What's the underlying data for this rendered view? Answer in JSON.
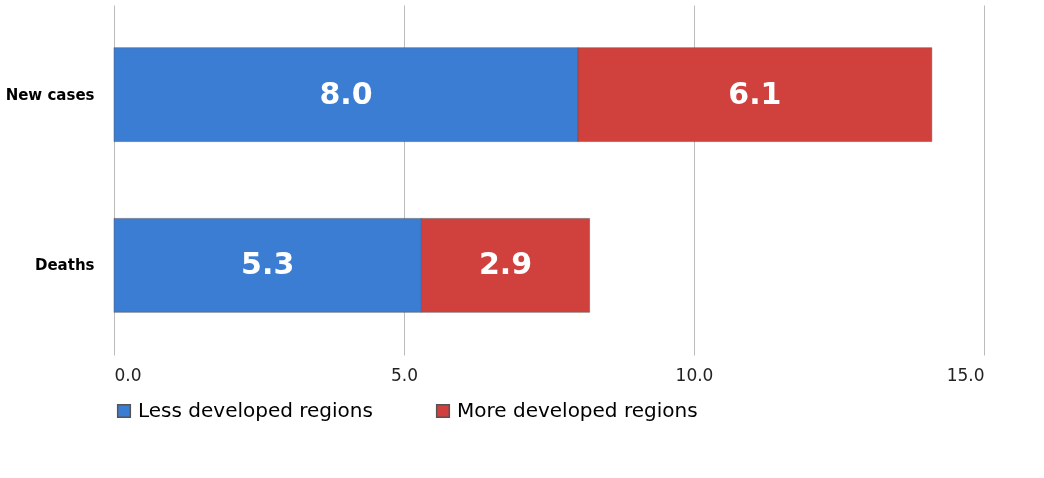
{
  "chart_data": {
    "type": "bar",
    "orientation": "horizontal",
    "stacked": true,
    "categories": [
      "New cases",
      "Deaths"
    ],
    "series": [
      {
        "name": "Less developed regions",
        "color": "#3b7dd3",
        "values": [
          8.0,
          5.3
        ],
        "value_labels": [
          "8.0",
          "5.3"
        ]
      },
      {
        "name": "More developed regions",
        "color": "#d0403d",
        "values": [
          6.1,
          2.9
        ],
        "value_labels": [
          "6.1",
          "2.9"
        ]
      }
    ],
    "xlim": [
      0,
      15
    ],
    "xticks": [
      {
        "value": 0,
        "label": "0.0"
      },
      {
        "value": 5,
        "label": "5.0"
      },
      {
        "value": 10,
        "label": "10.0"
      },
      {
        "value": 15,
        "label": "15.0"
      }
    ],
    "grid": "x",
    "legend": "bottom"
  }
}
